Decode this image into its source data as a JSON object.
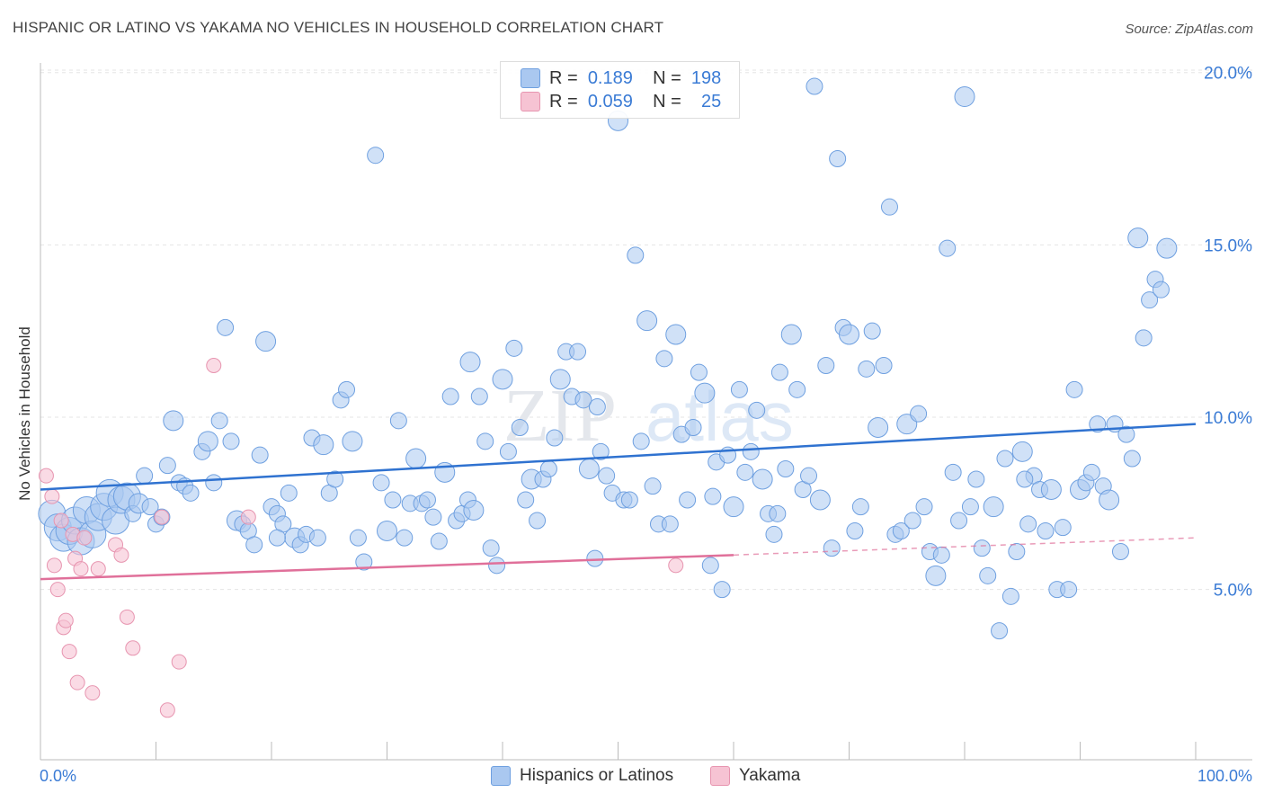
{
  "header": {
    "title": "HISPANIC OR LATINO VS YAKAMA NO VEHICLES IN HOUSEHOLD CORRELATION CHART",
    "source": "Source: ZipAtlas.com"
  },
  "legend_top": {
    "rows": [
      {
        "r_label": "R =",
        "r_value": "0.189",
        "n_label": "N =",
        "n_value": "198"
      },
      {
        "r_label": "R =",
        "r_value": "0.059",
        "n_label": "N =",
        "n_value": "25"
      }
    ]
  },
  "legend_bottom": [
    "Hispanics or Latinos",
    "Yakama"
  ],
  "watermark": {
    "zip": "ZIP",
    "atlas": "atlas"
  },
  "colors": {
    "blue_fill": "#aac8f0",
    "blue_stroke": "#6fa0e0",
    "blue_line": "#2f72d0",
    "pink_fill": "#f6c3d3",
    "pink_stroke": "#e795b0",
    "pink_line": "#e0709a",
    "accent_text": "#3a7bd5"
  },
  "chart_data": {
    "type": "scatter",
    "title": "HISPANIC OR LATINO VS YAKAMA NO VEHICLES IN HOUSEHOLD CORRELATION CHART",
    "xlabel": "",
    "ylabel": "No Vehicles in Household",
    "xlim": [
      0,
      100
    ],
    "ylim": [
      0,
      20.5
    ],
    "x_tick_labels": [
      "0.0%",
      "100.0%"
    ],
    "y_ticks": [
      5,
      10,
      15,
      20
    ],
    "y_tick_labels": [
      "5.0%",
      "10.0%",
      "15.0%",
      "20.0%"
    ],
    "grid": true,
    "legend_position": "bottom",
    "series": [
      {
        "name": "Hispanics or Latinos",
        "R": 0.189,
        "N": 198,
        "trend": {
          "x": [
            0,
            100
          ],
          "y": [
            7.9,
            9.8
          ]
        },
        "points": [
          [
            1,
            7.2
          ],
          [
            1.5,
            6.8
          ],
          [
            2,
            6.5
          ],
          [
            2.5,
            6.7
          ],
          [
            3,
            7.0
          ],
          [
            3.5,
            6.4
          ],
          [
            4,
            7.3
          ],
          [
            4.5,
            6.6
          ],
          [
            5,
            7.1
          ],
          [
            5.5,
            7.4
          ],
          [
            6,
            7.8
          ],
          [
            6.5,
            7.0
          ],
          [
            7,
            7.6
          ],
          [
            7.5,
            7.7
          ],
          [
            8,
            7.2
          ],
          [
            8.5,
            7.5
          ],
          [
            9,
            8.3
          ],
          [
            9.5,
            7.4
          ],
          [
            10,
            6.9
          ],
          [
            11,
            8.6
          ],
          [
            11.5,
            9.9
          ],
          [
            12,
            8.1
          ],
          [
            12.5,
            8.0
          ],
          [
            13,
            7.8
          ],
          [
            14,
            9.0
          ],
          [
            14.5,
            9.3
          ],
          [
            15,
            8.1
          ],
          [
            15.5,
            9.9
          ],
          [
            16,
            12.6
          ],
          [
            16.5,
            9.3
          ],
          [
            17,
            7.0
          ],
          [
            17.5,
            6.9
          ],
          [
            18,
            6.7
          ],
          [
            18.5,
            6.3
          ],
          [
            19,
            8.9
          ],
          [
            19.5,
            12.2
          ],
          [
            20,
            7.4
          ],
          [
            20.5,
            7.2
          ],
          [
            21,
            6.9
          ],
          [
            21.5,
            7.8
          ],
          [
            22,
            6.5
          ],
          [
            22.5,
            6.3
          ],
          [
            23,
            6.6
          ],
          [
            23.5,
            9.4
          ],
          [
            24,
            6.5
          ],
          [
            24.5,
            9.2
          ],
          [
            25,
            7.8
          ],
          [
            25.5,
            8.2
          ],
          [
            26,
            10.5
          ],
          [
            26.5,
            10.8
          ],
          [
            27,
            9.3
          ],
          [
            27.5,
            6.5
          ],
          [
            28,
            5.8
          ],
          [
            29,
            17.6
          ],
          [
            29.5,
            8.1
          ],
          [
            30,
            6.7
          ],
          [
            30.5,
            7.6
          ],
          [
            31,
            9.9
          ],
          [
            31.5,
            6.5
          ],
          [
            32,
            7.5
          ],
          [
            32.5,
            8.8
          ],
          [
            33,
            7.5
          ],
          [
            33.5,
            7.6
          ],
          [
            34,
            7.1
          ],
          [
            34.5,
            6.4
          ],
          [
            35,
            8.4
          ],
          [
            35.5,
            10.6
          ],
          [
            36,
            7.0
          ],
          [
            36.5,
            7.2
          ],
          [
            37,
            7.6
          ],
          [
            37.5,
            7.3
          ],
          [
            38,
            10.6
          ],
          [
            38.5,
            9.3
          ],
          [
            39,
            6.2
          ],
          [
            39.5,
            5.7
          ],
          [
            40,
            11.1
          ],
          [
            40.5,
            9.0
          ],
          [
            41,
            12.0
          ],
          [
            41.5,
            9.7
          ],
          [
            42,
            7.6
          ],
          [
            42.5,
            8.2
          ],
          [
            43,
            7.0
          ],
          [
            43.5,
            8.2
          ],
          [
            44,
            8.5
          ],
          [
            44.5,
            9.4
          ],
          [
            45,
            11.1
          ],
          [
            45.5,
            11.9
          ],
          [
            46,
            10.6
          ],
          [
            46.5,
            11.9
          ],
          [
            47,
            10.5
          ],
          [
            47.5,
            8.5
          ],
          [
            48,
            5.9
          ],
          [
            48.5,
            9.0
          ],
          [
            49,
            8.3
          ],
          [
            49.5,
            7.8
          ],
          [
            50,
            18.6
          ],
          [
            50.5,
            7.6
          ],
          [
            51,
            7.6
          ],
          [
            51.5,
            14.7
          ],
          [
            52,
            9.3
          ],
          [
            52.5,
            12.8
          ],
          [
            53,
            8.0
          ],
          [
            53.5,
            6.9
          ],
          [
            54,
            11.7
          ],
          [
            54.5,
            6.9
          ],
          [
            55,
            12.4
          ],
          [
            55.5,
            9.5
          ],
          [
            56,
            7.6
          ],
          [
            56.5,
            9.7
          ],
          [
            57,
            11.3
          ],
          [
            57.5,
            10.7
          ],
          [
            58,
            5.7
          ],
          [
            58.5,
            8.7
          ],
          [
            59,
            5.0
          ],
          [
            59.5,
            8.9
          ],
          [
            60,
            7.4
          ],
          [
            60.5,
            10.8
          ],
          [
            61,
            8.4
          ],
          [
            61.5,
            9.0
          ],
          [
            62,
            10.2
          ],
          [
            62.5,
            8.2
          ],
          [
            63,
            7.2
          ],
          [
            63.5,
            6.6
          ],
          [
            64,
            11.3
          ],
          [
            64.5,
            8.5
          ],
          [
            65,
            12.4
          ],
          [
            65.5,
            10.8
          ],
          [
            66,
            7.9
          ],
          [
            66.5,
            8.3
          ],
          [
            67,
            19.6
          ],
          [
            67.5,
            7.6
          ],
          [
            68,
            11.5
          ],
          [
            68.5,
            6.2
          ],
          [
            69,
            17.5
          ],
          [
            69.5,
            12.6
          ],
          [
            70,
            12.4
          ],
          [
            70.5,
            6.7
          ],
          [
            71,
            7.4
          ],
          [
            71.5,
            11.4
          ],
          [
            72,
            12.5
          ],
          [
            72.5,
            9.7
          ],
          [
            73,
            11.5
          ],
          [
            73.5,
            16.1
          ],
          [
            74,
            6.6
          ],
          [
            74.5,
            6.7
          ],
          [
            75,
            9.8
          ],
          [
            75.5,
            7.0
          ],
          [
            76,
            10.1
          ],
          [
            76.5,
            7.4
          ],
          [
            77,
            6.1
          ],
          [
            77.5,
            5.4
          ],
          [
            78,
            6.0
          ],
          [
            78.5,
            14.9
          ],
          [
            79,
            8.4
          ],
          [
            79.5,
            7.0
          ],
          [
            80,
            19.3
          ],
          [
            80.5,
            7.4
          ],
          [
            81,
            8.2
          ],
          [
            81.5,
            6.2
          ],
          [
            82,
            5.4
          ],
          [
            82.5,
            7.4
          ],
          [
            83,
            3.8
          ],
          [
            83.5,
            8.8
          ],
          [
            84,
            4.8
          ],
          [
            84.5,
            6.1
          ],
          [
            85,
            9.0
          ],
          [
            85.5,
            6.9
          ],
          [
            86,
            8.3
          ],
          [
            86.5,
            7.9
          ],
          [
            87,
            6.7
          ],
          [
            87.5,
            7.9
          ],
          [
            88,
            5.0
          ],
          [
            88.5,
            6.8
          ],
          [
            89,
            5.0
          ],
          [
            89.5,
            10.8
          ],
          [
            90,
            7.9
          ],
          [
            90.5,
            8.1
          ],
          [
            91,
            8.4
          ],
          [
            91.5,
            9.8
          ],
          [
            92,
            8.0
          ],
          [
            92.5,
            7.6
          ],
          [
            93,
            9.8
          ],
          [
            93.5,
            6.1
          ],
          [
            94,
            9.5
          ],
          [
            94.5,
            8.8
          ],
          [
            95,
            15.2
          ],
          [
            95.5,
            12.3
          ],
          [
            96,
            13.4
          ],
          [
            96.5,
            14.0
          ],
          [
            97,
            13.7
          ],
          [
            97.5,
            14.9
          ],
          [
            20.5,
            6.5
          ],
          [
            10.5,
            7.1
          ],
          [
            63.8,
            7.2
          ],
          [
            85.2,
            8.2
          ],
          [
            37.2,
            11.6
          ],
          [
            48.2,
            10.3
          ],
          [
            58.2,
            7.7
          ]
        ]
      },
      {
        "name": "Yakama",
        "R": 0.059,
        "N": 25,
        "trend": {
          "x": [
            0,
            60
          ],
          "y": [
            5.3,
            6.0
          ]
        },
        "trend_dashed": {
          "x": [
            60,
            100
          ],
          "y": [
            6.0,
            6.5
          ]
        },
        "points": [
          [
            0.5,
            8.3
          ],
          [
            1,
            7.7
          ],
          [
            1.2,
            5.7
          ],
          [
            1.5,
            5.0
          ],
          [
            1.8,
            7.0
          ],
          [
            2,
            3.9
          ],
          [
            2.2,
            4.1
          ],
          [
            2.5,
            3.2
          ],
          [
            2.8,
            6.6
          ],
          [
            3,
            5.9
          ],
          [
            3.2,
            2.3
          ],
          [
            3.5,
            5.6
          ],
          [
            4.5,
            2.0
          ],
          [
            5,
            5.6
          ],
          [
            6.5,
            6.3
          ],
          [
            7,
            6.0
          ],
          [
            7.5,
            4.2
          ],
          [
            8,
            3.3
          ],
          [
            10.5,
            7.1
          ],
          [
            11,
            1.5
          ],
          [
            12,
            2.9
          ],
          [
            15,
            11.5
          ],
          [
            18,
            7.1
          ],
          [
            55,
            5.7
          ],
          [
            3.8,
            6.5
          ]
        ]
      }
    ]
  }
}
